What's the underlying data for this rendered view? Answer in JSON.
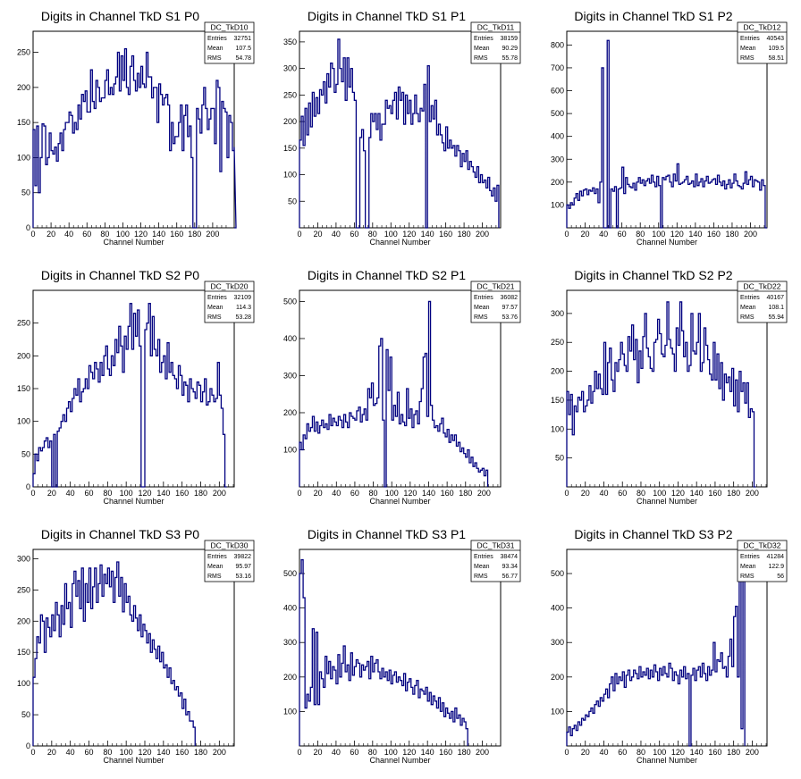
{
  "colors": {
    "line": "#000080",
    "axis": "#000000",
    "background": "#ffffff"
  },
  "chart_data": [
    {
      "type": "histogram",
      "title": "Digits in Channel TkD S1 P0",
      "xlabel": "Channel Number",
      "xlim": [
        0,
        224
      ],
      "ylim": [
        0,
        280
      ],
      "xticks": [
        0,
        20,
        40,
        60,
        80,
        100,
        120,
        140,
        160,
        180,
        200
      ],
      "yticks": [
        0,
        50,
        100,
        150,
        200,
        250
      ],
      "stats": {
        "name": "DC_TkD10",
        "rows": [
          [
            "Entries",
            "32751"
          ],
          [
            "Mean",
            "107.5"
          ],
          [
            "RMS",
            "54.78"
          ]
        ]
      },
      "bin_width": 2,
      "values": [
        140,
        60,
        145,
        50,
        100,
        148,
        145,
        90,
        100,
        135,
        110,
        105,
        115,
        95,
        120,
        135,
        110,
        140,
        150,
        150,
        165,
        160,
        135,
        150,
        140,
        175,
        155,
        190,
        180,
        195,
        165,
        165,
        225,
        180,
        170,
        210,
        200,
        180,
        185,
        185,
        210,
        225,
        190,
        200,
        190,
        205,
        215,
        250,
        195,
        245,
        210,
        255,
        200,
        190,
        230,
        245,
        210,
        195,
        220,
        200,
        230,
        205,
        200,
        250,
        215,
        215,
        185,
        200,
        200,
        150,
        205,
        190,
        175,
        185,
        190,
        175,
        110,
        150,
        120,
        130,
        130,
        150,
        175,
        110,
        160,
        175,
        130,
        145,
        100,
        0,
        0,
        170,
        155,
        135,
        175,
        200,
        170,
        140,
        155,
        170,
        170,
        120,
        210,
        200,
        80,
        180,
        170,
        165,
        100,
        160,
        150,
        110,
        115,
        0
      ]
    },
    {
      "type": "histogram",
      "title": "Digits in Channel TkD S1 P1",
      "xlabel": "Channel Number",
      "xlim": [
        0,
        220
      ],
      "ylim": [
        0,
        370
      ],
      "xticks": [
        0,
        20,
        40,
        60,
        80,
        100,
        120,
        140,
        160,
        180,
        200
      ],
      "yticks": [
        50,
        100,
        150,
        200,
        250,
        300,
        350
      ],
      "stats": {
        "name": "DC_TkD11",
        "rows": [
          [
            "Entries",
            "38159"
          ],
          [
            "Mean",
            "90.29"
          ],
          [
            "RMS",
            "55.78"
          ]
        ]
      },
      "bin_width": 2,
      "values": [
        165,
        210,
        155,
        225,
        175,
        235,
        190,
        255,
        210,
        245,
        215,
        260,
        250,
        275,
        235,
        290,
        265,
        310,
        300,
        255,
        270,
        355,
        300,
        275,
        320,
        240,
        320,
        265,
        300,
        255,
        240,
        0,
        0,
        170,
        185,
        145,
        0,
        0,
        170,
        215,
        200,
        215,
        185,
        215,
        165,
        195,
        195,
        240,
        225,
        230,
        215,
        240,
        255,
        205,
        265,
        240,
        255,
        195,
        250,
        215,
        240,
        195,
        215,
        250,
        215,
        200,
        225,
        220,
        270,
        0,
        305,
        200,
        230,
        205,
        240,
        175,
        195,
        175,
        160,
        145,
        190,
        150,
        165,
        150,
        155,
        135,
        155,
        145,
        115,
        140,
        125,
        145,
        110,
        125,
        115,
        105,
        95,
        115,
        85,
        100,
        85,
        90,
        75,
        95,
        70,
        60,
        75,
        50,
        80
      ]
    },
    {
      "type": "histogram",
      "title": "Digits in Channel TkD S1 P2",
      "xlabel": "Channel Number",
      "xlim": [
        0,
        218
      ],
      "ylim": [
        0,
        860
      ],
      "xticks": [
        0,
        20,
        40,
        60,
        80,
        100,
        120,
        140,
        160,
        180,
        200
      ],
      "yticks": [
        100,
        200,
        300,
        400,
        500,
        600,
        700,
        800
      ],
      "stats": {
        "name": "DC_TkD12",
        "rows": [
          [
            "Entries",
            "40543"
          ],
          [
            "Mean",
            "109.5"
          ],
          [
            "RMS",
            "58.51"
          ]
        ]
      },
      "bin_width": 2,
      "values": [
        100,
        85,
        110,
        100,
        130,
        150,
        120,
        160,
        140,
        165,
        170,
        145,
        165,
        160,
        175,
        150,
        170,
        110,
        200,
        700,
        0,
        0,
        820,
        0,
        170,
        160,
        180,
        0,
        170,
        175,
        265,
        150,
        220,
        190,
        180,
        175,
        195,
        165,
        200,
        220,
        195,
        210,
        185,
        205,
        215,
        195,
        230,
        200,
        180,
        225,
        185,
        0,
        220,
        210,
        225,
        230,
        200,
        180,
        235,
        205,
        280,
        190,
        195,
        200,
        210,
        225,
        190,
        195,
        205,
        180,
        235,
        185,
        200,
        215,
        180,
        205,
        225,
        195,
        200,
        210,
        215,
        190,
        230,
        200,
        185,
        205,
        170,
        190,
        210,
        175,
        195,
        235,
        205,
        185,
        180,
        170,
        195,
        245,
        190,
        210,
        225,
        180,
        210,
        205,
        200,
        165,
        210,
        185,
        0
      ]
    },
    {
      "type": "histogram",
      "title": "Digits in Channel TkD S2 P0",
      "xlabel": "Channel Number",
      "xlim": [
        0,
        216
      ],
      "ylim": [
        0,
        300
      ],
      "xticks": [
        0,
        20,
        40,
        60,
        80,
        100,
        120,
        140,
        160,
        180,
        200
      ],
      "yticks": [
        0,
        50,
        100,
        150,
        200,
        250
      ],
      "stats": {
        "name": "DC_TkD20",
        "rows": [
          [
            "Entries",
            "32109"
          ],
          [
            "Mean",
            "114.3"
          ],
          [
            "RMS",
            "53.28"
          ]
        ]
      },
      "bin_width": 2,
      "values": [
        20,
        50,
        40,
        60,
        55,
        60,
        70,
        75,
        60,
        70,
        0,
        80,
        0,
        85,
        90,
        100,
        110,
        100,
        120,
        130,
        115,
        135,
        150,
        140,
        165,
        130,
        145,
        150,
        165,
        150,
        185,
        175,
        165,
        190,
        180,
        160,
        190,
        170,
        200,
        215,
        180,
        170,
        200,
        185,
        225,
        205,
        245,
        215,
        175,
        230,
        210,
        245,
        280,
        210,
        265,
        230,
        270,
        215,
        0,
        0,
        240,
        250,
        280,
        200,
        260,
        210,
        200,
        225,
        175,
        190,
        200,
        165,
        220,
        175,
        190,
        170,
        165,
        150,
        185,
        170,
        140,
        160,
        155,
        130,
        165,
        150,
        145,
        135,
        160,
        155,
        130,
        145,
        165,
        125,
        130,
        150,
        140,
        130,
        135,
        190,
        140,
        120,
        80,
        0
      ]
    },
    {
      "type": "histogram",
      "title": "Digits in Channel TkD S2 P1",
      "xlabel": "Channel Number",
      "xlim": [
        0,
        218
      ],
      "ylim": [
        0,
        530
      ],
      "xticks": [
        0,
        20,
        40,
        60,
        80,
        100,
        120,
        140,
        160,
        180,
        200
      ],
      "yticks": [
        100,
        200,
        300,
        400,
        500
      ],
      "stats": {
        "name": "DC_TkD21",
        "rows": [
          [
            "Entries",
            "36082"
          ],
          [
            "Mean",
            "97.57"
          ],
          [
            "RMS",
            "53.76"
          ]
        ]
      },
      "bin_width": 2,
      "values": [
        120,
        100,
        140,
        130,
        170,
        150,
        160,
        190,
        150,
        175,
        145,
        165,
        180,
        160,
        170,
        155,
        195,
        165,
        185,
        175,
        165,
        190,
        180,
        160,
        195,
        175,
        160,
        200,
        190,
        185,
        180,
        205,
        215,
        175,
        195,
        210,
        180,
        265,
        240,
        280,
        220,
        225,
        240,
        380,
        400,
        180,
        0,
        370,
        260,
        350,
        180,
        220,
        190,
        255,
        170,
        195,
        175,
        165,
        265,
        185,
        210,
        160,
        195,
        205,
        170,
        230,
        265,
        350,
        360,
        190,
        500,
        220,
        180,
        160,
        165,
        150,
        170,
        185,
        145,
        135,
        155,
        120,
        140,
        125,
        140,
        110,
        120,
        95,
        105,
        90,
        80,
        100,
        65,
        80,
        55,
        65,
        50,
        40,
        45,
        50,
        30,
        45
      ]
    },
    {
      "type": "histogram",
      "title": "Digits in Channel TkD S2 P2",
      "xlabel": "Channel Number",
      "xlim": [
        0,
        216
      ],
      "ylim": [
        0,
        340
      ],
      "xticks": [
        0,
        20,
        40,
        60,
        80,
        100,
        120,
        140,
        160,
        180,
        200
      ],
      "yticks": [
        50,
        100,
        150,
        200,
        250,
        300
      ],
      "stats": {
        "name": "DC_TkD22",
        "rows": [
          [
            "Entries",
            "40167"
          ],
          [
            "Mean",
            "108.1"
          ],
          [
            "RMS",
            "55.94"
          ]
        ]
      },
      "bin_width": 2,
      "values": [
        165,
        125,
        160,
        90,
        140,
        130,
        155,
        150,
        165,
        130,
        140,
        150,
        175,
        145,
        165,
        200,
        170,
        195,
        170,
        160,
        250,
        160,
        215,
        240,
        185,
        165,
        215,
        200,
        220,
        250,
        230,
        210,
        200,
        260,
        235,
        280,
        220,
        255,
        180,
        235,
        205,
        260,
        300,
        240,
        225,
        205,
        200,
        250,
        255,
        290,
        265,
        230,
        225,
        245,
        320,
        255,
        240,
        230,
        200,
        275,
        245,
        320,
        270,
        225,
        250,
        200,
        210,
        300,
        235,
        230,
        250,
        300,
        200,
        215,
        275,
        245,
        220,
        195,
        185,
        250,
        185,
        230,
        170,
        215,
        150,
        195,
        180,
        190,
        165,
        205,
        140,
        185,
        130,
        200,
        165,
        180,
        145,
        180,
        120,
        135,
        130,
        0
      ]
    },
    {
      "type": "histogram",
      "title": "Digits in Channel TkD S3 P0",
      "xlabel": "Channel Number",
      "xlim": [
        0,
        216
      ],
      "ylim": [
        0,
        315
      ],
      "xticks": [
        0,
        20,
        40,
        60,
        80,
        100,
        120,
        140,
        160,
        180,
        200
      ],
      "yticks": [
        0,
        50,
        100,
        150,
        200,
        250,
        300
      ],
      "stats": {
        "name": "DC_TkD30",
        "rows": [
          [
            "Entries",
            "39822"
          ],
          [
            "Mean",
            "95.97"
          ],
          [
            "RMS",
            "53.16"
          ]
        ]
      },
      "bin_width": 2,
      "values": [
        110,
        140,
        175,
        165,
        210,
        200,
        150,
        205,
        190,
        175,
        210,
        185,
        230,
        210,
        175,
        225,
        195,
        260,
        220,
        230,
        190,
        260,
        280,
        240,
        265,
        220,
        285,
        200,
        260,
        230,
        285,
        220,
        255,
        285,
        230,
        260,
        290,
        240,
        275,
        260,
        285,
        255,
        280,
        230,
        270,
        295,
        240,
        270,
        215,
        260,
        230,
        240,
        210,
        200,
        225,
        205,
        185,
        210,
        175,
        195,
        185,
        165,
        180,
        150,
        170,
        155,
        140,
        160,
        135,
        150,
        125,
        130,
        110,
        125,
        100,
        105,
        90,
        95,
        80,
        85,
        60,
        75,
        50,
        55,
        40,
        40,
        30
      ]
    },
    {
      "type": "histogram",
      "title": "Digits in Channel TkD S3 P1",
      "xlabel": "Channel Number",
      "xlim": [
        0,
        220
      ],
      "ylim": [
        0,
        570
      ],
      "xticks": [
        0,
        20,
        40,
        60,
        80,
        100,
        120,
        140,
        160,
        180,
        200
      ],
      "yticks": [
        100,
        200,
        300,
        400,
        500
      ],
      "stats": {
        "name": "DC_TkD31",
        "rows": [
          [
            "Entries",
            "38474"
          ],
          [
            "Mean",
            "93.34"
          ],
          [
            "RMS",
            "56.77"
          ]
        ]
      },
      "bin_width": 2,
      "values": [
        500,
        540,
        430,
        110,
        150,
        130,
        170,
        340,
        120,
        330,
        120,
        215,
        195,
        170,
        260,
        210,
        245,
        195,
        230,
        220,
        180,
        265,
        200,
        240,
        290,
        215,
        235,
        190,
        270,
        205,
        230,
        250,
        240,
        200,
        235,
        220,
        230,
        245,
        195,
        260,
        215,
        240,
        250,
        215,
        195,
        225,
        200,
        215,
        190,
        220,
        180,
        205,
        215,
        185,
        200,
        190,
        175,
        210,
        160,
        185,
        195,
        170,
        150,
        175,
        190,
        140,
        165,
        160,
        150,
        170,
        130,
        155,
        120,
        145,
        130,
        110,
        140,
        100,
        125,
        85,
        110,
        95,
        80,
        100,
        70,
        110,
        80,
        90,
        60,
        80,
        70,
        50
      ]
    },
    {
      "type": "histogram",
      "title": "Digits in Channel TkD S3 P2",
      "xlabel": "Channel Number",
      "xlim": [
        0,
        216
      ],
      "ylim": [
        0,
        570
      ],
      "xticks": [
        0,
        20,
        40,
        60,
        80,
        100,
        120,
        140,
        160,
        180,
        200
      ],
      "yticks": [
        100,
        200,
        300,
        400,
        500
      ],
      "stats": {
        "name": "DC_TkD32",
        "rows": [
          [
            "Entries",
            "41284"
          ],
          [
            "Mean",
            "122.9"
          ],
          [
            "RMS",
            "56"
          ]
        ]
      },
      "bin_width": 2,
      "values": [
        40,
        55,
        30,
        50,
        60,
        45,
        70,
        60,
        80,
        75,
        90,
        85,
        100,
        110,
        95,
        120,
        130,
        115,
        140,
        130,
        150,
        165,
        140,
        180,
        200,
        160,
        210,
        180,
        200,
        190,
        215,
        170,
        205,
        220,
        190,
        200,
        220,
        210,
        195,
        230,
        200,
        215,
        205,
        225,
        195,
        220,
        200,
        235,
        215,
        190,
        225,
        205,
        230,
        210,
        200,
        240,
        225,
        190,
        215,
        205,
        180,
        220,
        200,
        230,
        195,
        210,
        0,
        205,
        225,
        190,
        220,
        230,
        200,
        240,
        210,
        190,
        230,
        205,
        220,
        300,
        215,
        250,
        245,
        270,
        225,
        230,
        200,
        260,
        310,
        230,
        375,
        405,
        200,
        490,
        50,
        580
      ]
    }
  ]
}
